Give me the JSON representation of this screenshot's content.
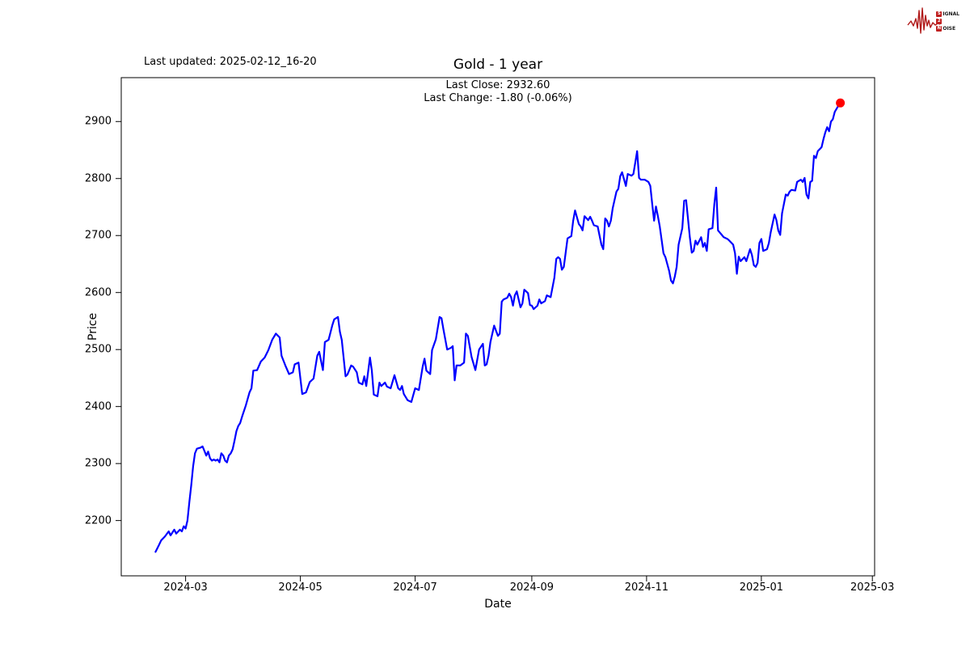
{
  "header": {
    "last_updated": "Last updated: 2025-02-12_16-20",
    "title": "Gold - 1 year",
    "last_close_line": "Last Close: 2932.60",
    "last_change_line": "Last Change: -1.80 (-0.06%)"
  },
  "logo": {
    "row1_box": "S",
    "row1_rest": "IGNAL",
    "row2_box": "2",
    "row2_rest": "",
    "row3_box": "N",
    "row3_rest": "OISE",
    "color": "#b01818"
  },
  "chart_data": {
    "type": "line",
    "title": "Gold - 1 year",
    "series_name": "Gold",
    "xlabel": "Date",
    "ylabel": "Price",
    "grid": false,
    "legend": "none",
    "line_color": "#0000ff",
    "marker_color": "#ff0000",
    "last_close": 2932.6,
    "last_change": -1.8,
    "last_change_pct": "-0.06%",
    "start_date": "2024-02-14",
    "end_date": "2025-02-12",
    "x_unit": "days_since_start_date",
    "xlim_days": [
      -18.2,
      382.2
    ],
    "ylim": [
      2103,
      2977
    ],
    "x_ticks": [
      {
        "label": "2024-03",
        "day": 16
      },
      {
        "label": "2024-05",
        "day": 77
      },
      {
        "label": "2024-07",
        "day": 138
      },
      {
        "label": "2024-09",
        "day": 200
      },
      {
        "label": "2024-11",
        "day": 261
      },
      {
        "label": "2025-01",
        "day": 322
      },
      {
        "label": "2025-03",
        "day": 381
      }
    ],
    "y_ticks": [
      2200,
      2300,
      2400,
      2500,
      2600,
      2700,
      2800,
      2900
    ],
    "points": [
      [
        0,
        2145
      ],
      [
        2,
        2158
      ],
      [
        3,
        2165
      ],
      [
        5,
        2172
      ],
      [
        7,
        2181
      ],
      [
        8,
        2174
      ],
      [
        10,
        2184
      ],
      [
        11,
        2177
      ],
      [
        13,
        2184
      ],
      [
        14,
        2181
      ],
      [
        15,
        2190
      ],
      [
        16,
        2186
      ],
      [
        17,
        2200
      ],
      [
        18,
        2233
      ],
      [
        19,
        2262
      ],
      [
        20,
        2295
      ],
      [
        21,
        2318
      ],
      [
        22,
        2326
      ],
      [
        24,
        2328
      ],
      [
        25,
        2330
      ],
      [
        26,
        2322
      ],
      [
        27,
        2314
      ],
      [
        28,
        2321
      ],
      [
        29,
        2309
      ],
      [
        30,
        2305
      ],
      [
        31,
        2307
      ],
      [
        32,
        2305
      ],
      [
        33,
        2307
      ],
      [
        34,
        2302
      ],
      [
        35,
        2318
      ],
      [
        36,
        2314
      ],
      [
        37,
        2305
      ],
      [
        38,
        2302
      ],
      [
        39,
        2314
      ],
      [
        40,
        2318
      ],
      [
        41,
        2325
      ],
      [
        42,
        2340
      ],
      [
        43,
        2357
      ],
      [
        44,
        2366
      ],
      [
        45,
        2371
      ],
      [
        46,
        2382
      ],
      [
        48,
        2402
      ],
      [
        50,
        2425
      ],
      [
        51,
        2432
      ],
      [
        52,
        2463
      ],
      [
        54,
        2464
      ],
      [
        56,
        2479
      ],
      [
        58,
        2486
      ],
      [
        60,
        2499
      ],
      [
        62,
        2517
      ],
      [
        64,
        2528
      ],
      [
        66,
        2521
      ],
      [
        67,
        2489
      ],
      [
        69,
        2472
      ],
      [
        71,
        2457
      ],
      [
        73,
        2460
      ],
      [
        74,
        2474
      ],
      [
        76,
        2477
      ],
      [
        78,
        2422
      ],
      [
        80,
        2425
      ],
      [
        82,
        2443
      ],
      [
        84,
        2449
      ],
      [
        86,
        2489
      ],
      [
        87,
        2496
      ],
      [
        89,
        2464
      ],
      [
        90,
        2513
      ],
      [
        92,
        2517
      ],
      [
        94,
        2543
      ],
      [
        95,
        2553
      ],
      [
        97,
        2557
      ],
      [
        98,
        2531
      ],
      [
        99,
        2517
      ],
      [
        101,
        2453
      ],
      [
        102,
        2456
      ],
      [
        104,
        2472
      ],
      [
        105,
        2470
      ],
      [
        107,
        2460
      ],
      [
        108,
        2442
      ],
      [
        110,
        2439
      ],
      [
        111,
        2453
      ],
      [
        112,
        2436
      ],
      [
        114,
        2486
      ],
      [
        115,
        2463
      ],
      [
        116,
        2421
      ],
      [
        118,
        2418
      ],
      [
        119,
        2442
      ],
      [
        120,
        2436
      ],
      [
        122,
        2442
      ],
      [
        123,
        2435
      ],
      [
        125,
        2432
      ],
      [
        127,
        2455
      ],
      [
        129,
        2432
      ],
      [
        130,
        2429
      ],
      [
        131,
        2436
      ],
      [
        132,
        2422
      ],
      [
        134,
        2411
      ],
      [
        136,
        2408
      ],
      [
        138,
        2432
      ],
      [
        140,
        2429
      ],
      [
        142,
        2470
      ],
      [
        143,
        2484
      ],
      [
        144,
        2463
      ],
      [
        146,
        2457
      ],
      [
        147,
        2499
      ],
      [
        149,
        2518
      ],
      [
        151,
        2557
      ],
      [
        152,
        2555
      ],
      [
        153,
        2536
      ],
      [
        155,
        2500
      ],
      [
        157,
        2503
      ],
      [
        158,
        2506
      ],
      [
        159,
        2446
      ],
      [
        160,
        2472
      ],
      [
        162,
        2472
      ],
      [
        164,
        2477
      ],
      [
        165,
        2528
      ],
      [
        166,
        2524
      ],
      [
        168,
        2487
      ],
      [
        170,
        2464
      ],
      [
        171,
        2482
      ],
      [
        172,
        2500
      ],
      [
        174,
        2510
      ],
      [
        175,
        2472
      ],
      [
        176,
        2474
      ],
      [
        177,
        2489
      ],
      [
        178,
        2513
      ],
      [
        180,
        2542
      ],
      [
        182,
        2524
      ],
      [
        183,
        2528
      ],
      [
        184,
        2584
      ],
      [
        185,
        2588
      ],
      [
        187,
        2591
      ],
      [
        188,
        2598
      ],
      [
        189,
        2592
      ],
      [
        190,
        2577
      ],
      [
        191,
        2595
      ],
      [
        192,
        2602
      ],
      [
        194,
        2574
      ],
      [
        195,
        2581
      ],
      [
        196,
        2605
      ],
      [
        198,
        2599
      ],
      [
        199,
        2578
      ],
      [
        200,
        2577
      ],
      [
        201,
        2571
      ],
      [
        202,
        2574
      ],
      [
        203,
        2577
      ],
      [
        204,
        2588
      ],
      [
        205,
        2581
      ],
      [
        207,
        2585
      ],
      [
        208,
        2595
      ],
      [
        210,
        2592
      ],
      [
        212,
        2626
      ],
      [
        213,
        2659
      ],
      [
        214,
        2662
      ],
      [
        215,
        2659
      ],
      [
        216,
        2640
      ],
      [
        217,
        2645
      ],
      [
        219,
        2695
      ],
      [
        220,
        2697
      ],
      [
        221,
        2699
      ],
      [
        222,
        2726
      ],
      [
        223,
        2744
      ],
      [
        225,
        2720
      ],
      [
        226,
        2716
      ],
      [
        227,
        2709
      ],
      [
        228,
        2734
      ],
      [
        230,
        2727
      ],
      [
        231,
        2733
      ],
      [
        232,
        2726
      ],
      [
        233,
        2718
      ],
      [
        235,
        2716
      ],
      [
        237,
        2684
      ],
      [
        238,
        2676
      ],
      [
        239,
        2730
      ],
      [
        240,
        2726
      ],
      [
        241,
        2716
      ],
      [
        242,
        2726
      ],
      [
        243,
        2748
      ],
      [
        245,
        2777
      ],
      [
        246,
        2782
      ],
      [
        247,
        2804
      ],
      [
        248,
        2811
      ],
      [
        250,
        2787
      ],
      [
        251,
        2808
      ],
      [
        253,
        2805
      ],
      [
        254,
        2808
      ],
      [
        256,
        2848
      ],
      [
        257,
        2801
      ],
      [
        258,
        2798
      ],
      [
        260,
        2798
      ],
      [
        261,
        2796
      ],
      [
        262,
        2794
      ],
      [
        263,
        2787
      ],
      [
        264,
        2755
      ],
      [
        265,
        2726
      ],
      [
        266,
        2751
      ],
      [
        267,
        2734
      ],
      [
        268,
        2716
      ],
      [
        270,
        2669
      ],
      [
        271,
        2662
      ],
      [
        273,
        2638
      ],
      [
        274,
        2621
      ],
      [
        275,
        2616
      ],
      [
        276,
        2628
      ],
      [
        277,
        2645
      ],
      [
        278,
        2684
      ],
      [
        280,
        2713
      ],
      [
        281,
        2761
      ],
      [
        282,
        2762
      ],
      [
        283,
        2730
      ],
      [
        284,
        2697
      ],
      [
        285,
        2670
      ],
      [
        286,
        2673
      ],
      [
        287,
        2691
      ],
      [
        288,
        2684
      ],
      [
        290,
        2697
      ],
      [
        291,
        2680
      ],
      [
        292,
        2687
      ],
      [
        293,
        2673
      ],
      [
        294,
        2711
      ],
      [
        296,
        2713
      ],
      [
        297,
        2755
      ],
      [
        298,
        2784
      ],
      [
        299,
        2709
      ],
      [
        301,
        2701
      ],
      [
        302,
        2697
      ],
      [
        304,
        2694
      ],
      [
        305,
        2691
      ],
      [
        307,
        2684
      ],
      [
        308,
        2669
      ],
      [
        309,
        2633
      ],
      [
        310,
        2663
      ],
      [
        311,
        2655
      ],
      [
        313,
        2662
      ],
      [
        314,
        2655
      ],
      [
        316,
        2676
      ],
      [
        317,
        2666
      ],
      [
        318,
        2648
      ],
      [
        319,
        2645
      ],
      [
        320,
        2652
      ],
      [
        321,
        2687
      ],
      [
        322,
        2694
      ],
      [
        323,
        2673
      ],
      [
        325,
        2676
      ],
      [
        326,
        2687
      ],
      [
        327,
        2706
      ],
      [
        329,
        2737
      ],
      [
        330,
        2727
      ],
      [
        331,
        2709
      ],
      [
        332,
        2701
      ],
      [
        333,
        2739
      ],
      [
        335,
        2772
      ],
      [
        336,
        2770
      ],
      [
        337,
        2777
      ],
      [
        338,
        2780
      ],
      [
        340,
        2779
      ],
      [
        341,
        2794
      ],
      [
        342,
        2796
      ],
      [
        343,
        2798
      ],
      [
        344,
        2794
      ],
      [
        345,
        2801
      ],
      [
        346,
        2772
      ],
      [
        347,
        2765
      ],
      [
        348,
        2794
      ],
      [
        349,
        2796
      ],
      [
        350,
        2840
      ],
      [
        351,
        2836
      ],
      [
        352,
        2848
      ],
      [
        354,
        2855
      ],
      [
        355,
        2869
      ],
      [
        356,
        2881
      ],
      [
        357,
        2890
      ],
      [
        358,
        2883
      ],
      [
        359,
        2900
      ],
      [
        360,
        2904
      ],
      [
        361,
        2917
      ],
      [
        363,
        2928
      ],
      [
        364,
        2932.6
      ]
    ]
  }
}
